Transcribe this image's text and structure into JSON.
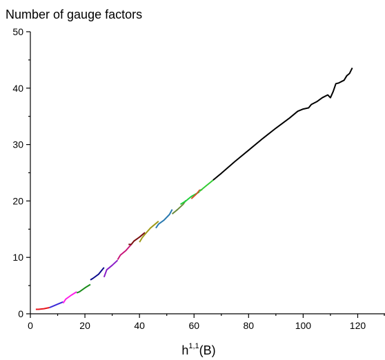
{
  "chart_data": {
    "type": "line",
    "title": "",
    "ylabel": "Number of gauge factors",
    "xlabel": "h",
    "xlabel_sup": "1,1",
    "xlabel_suffix": "(B)",
    "xlim": [
      0,
      130
    ],
    "ylim": [
      0,
      50
    ],
    "x_ticks": [
      0,
      20,
      40,
      60,
      80,
      100,
      120
    ],
    "x_minor_ticks": [
      10,
      30,
      50,
      70,
      90,
      110,
      130
    ],
    "y_ticks": [
      0,
      10,
      20,
      30,
      40,
      50
    ],
    "y_minor_ticks": [
      5,
      15,
      25,
      35,
      45
    ],
    "grid": false,
    "legend": "none",
    "series": [
      {
        "color": "#e8141b",
        "x": [
          2,
          3,
          5,
          7
        ],
        "y": [
          0.8,
          0.8,
          0.9,
          1.1
        ]
      },
      {
        "color": "#3b2ad8",
        "x": [
          7,
          8,
          10,
          12
        ],
        "y": [
          1.1,
          1.3,
          1.7,
          2.1
        ]
      },
      {
        "color": "#ff1ee8",
        "x": [
          12,
          13,
          15,
          17
        ],
        "y": [
          1.9,
          2.6,
          3.3,
          3.9
        ]
      },
      {
        "color": "#1a8c1a",
        "x": [
          17,
          18,
          20,
          22
        ],
        "y": [
          3.7,
          3.9,
          4.6,
          5.2
        ]
      },
      {
        "color": "#0b0b8c",
        "x": [
          22,
          23,
          25,
          27
        ],
        "y": [
          6.0,
          6.3,
          7.0,
          8.2
        ]
      },
      {
        "color": "#8b1ec8",
        "x": [
          27,
          28,
          30,
          32
        ],
        "y": [
          6.5,
          7.8,
          8.6,
          9.5
        ]
      },
      {
        "color": "#c8157a",
        "x": [
          32,
          33,
          35,
          37
        ],
        "y": [
          9.6,
          10.4,
          11.2,
          12.3
        ]
      },
      {
        "color": "#7a1010",
        "x": [
          36,
          37,
          38,
          40,
          42
        ],
        "y": [
          12.3,
          12.3,
          12.9,
          13.6,
          14.4
        ]
      },
      {
        "color": "#a09a1a",
        "x": [
          40,
          41,
          42,
          44,
          47
        ],
        "y": [
          12.7,
          13.5,
          14.1,
          15.2,
          16.4
        ]
      },
      {
        "color": "#2a7ab0",
        "x": [
          46,
          47,
          49,
          51,
          52
        ],
        "y": [
          15.2,
          15.9,
          16.6,
          17.6,
          18.5
        ]
      },
      {
        "color": "#6a8a3a",
        "x": [
          52,
          54,
          56,
          57
        ],
        "y": [
          17.7,
          18.5,
          19.4,
          20.1
        ]
      },
      {
        "color": "#1fd03a",
        "x": [
          55,
          57,
          59,
          62
        ],
        "y": [
          19.4,
          20.0,
          20.8,
          21.6
        ]
      },
      {
        "color": "#d2552a",
        "x": [
          59,
          61,
          62,
          63
        ],
        "y": [
          20.4,
          21.3,
          21.9,
          22.0
        ]
      },
      {
        "color": "#33cc33",
        "x": [
          62,
          64,
          66,
          67
        ],
        "y": [
          21.7,
          22.5,
          23.3,
          23.7
        ]
      },
      {
        "color": "#000000",
        "x": [
          67,
          70,
          75,
          80,
          85,
          90,
          95,
          98,
          100,
          102,
          103,
          105,
          107,
          109,
          110,
          111,
          112,
          113,
          115,
          116,
          117,
          118
        ],
        "y": [
          23.7,
          24.9,
          27.0,
          29.0,
          31.0,
          32.9,
          34.7,
          35.9,
          36.3,
          36.5,
          37.1,
          37.6,
          38.3,
          38.8,
          38.3,
          39.4,
          40.8,
          40.9,
          41.4,
          42.2,
          42.6,
          43.6
        ]
      }
    ]
  }
}
